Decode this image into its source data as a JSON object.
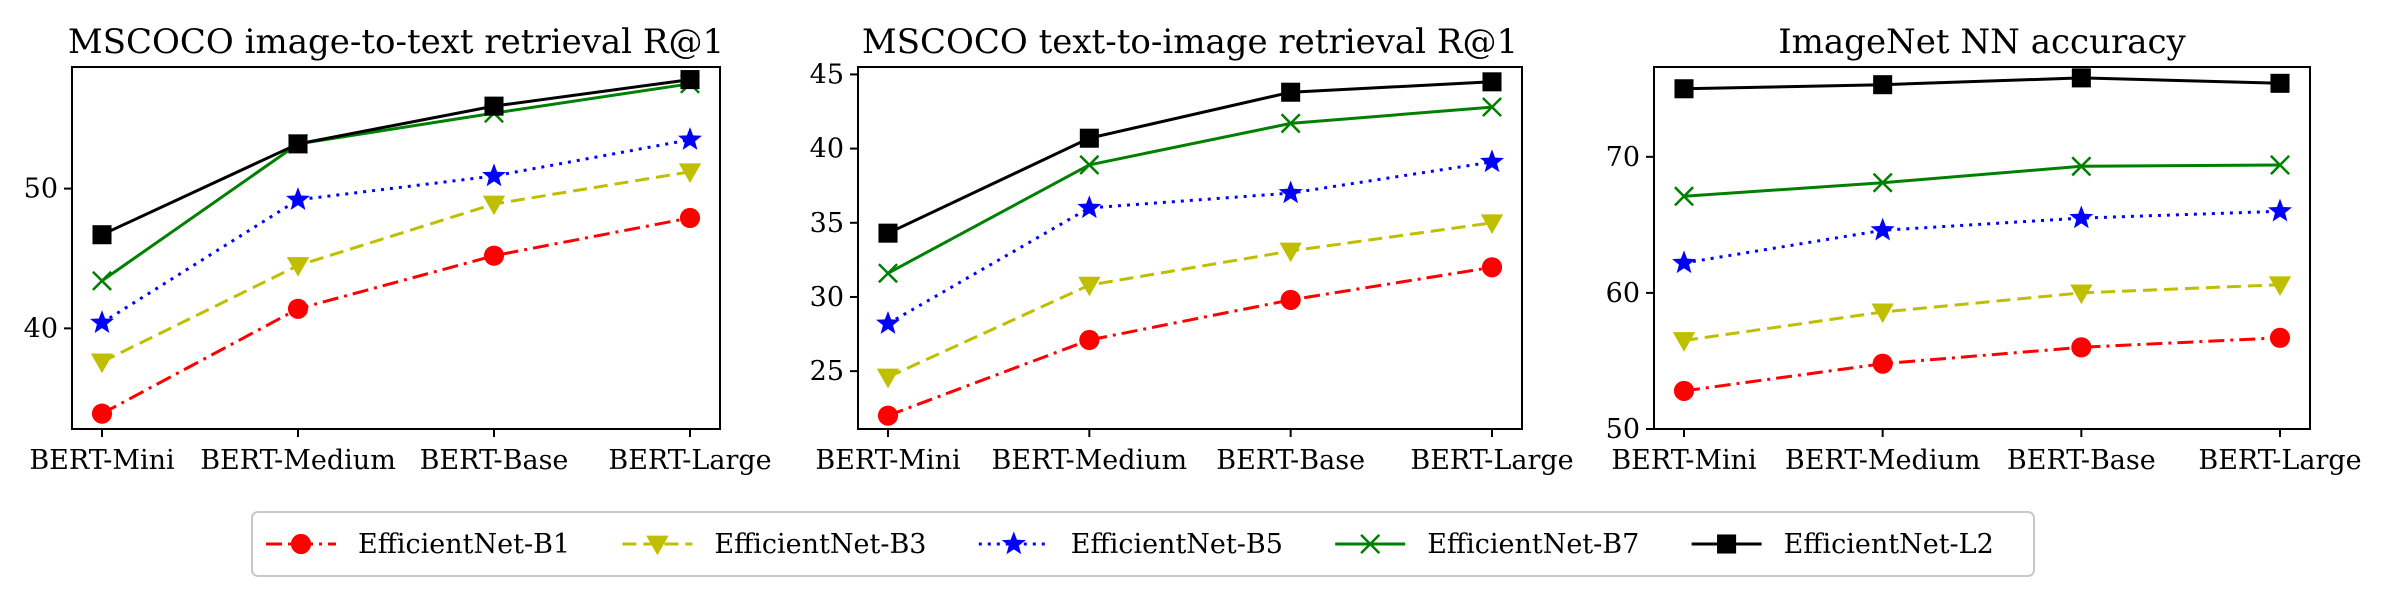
{
  "chart_data": [
    {
      "type": "line",
      "title": "MSCOCO image-to-text retrieval R@1",
      "xlabel": "",
      "ylabel": "",
      "categories": [
        "BERT-Mini",
        "BERT-Medium",
        "BERT-Base",
        "BERT-Large"
      ],
      "yticks": [
        40,
        50
      ],
      "ylim": [
        32.8,
        58.7
      ],
      "grid": false,
      "series": [
        {
          "name": "EfficientNet-B1",
          "values": [
            33.9,
            41.4,
            45.2,
            47.9
          ]
        },
        {
          "name": "EfficientNet-B3",
          "values": [
            37.6,
            44.5,
            48.9,
            51.2
          ]
        },
        {
          "name": "EfficientNet-B5",
          "values": [
            40.4,
            49.2,
            50.9,
            53.5
          ]
        },
        {
          "name": "EfficientNet-B7",
          "values": [
            43.4,
            53.2,
            55.4,
            57.5
          ]
        },
        {
          "name": "EfficientNet-L2",
          "values": [
            46.7,
            53.2,
            55.9,
            57.8
          ]
        }
      ]
    },
    {
      "type": "line",
      "title": "MSCOCO text-to-image retrieval R@1",
      "xlabel": "",
      "ylabel": "",
      "categories": [
        "BERT-Mini",
        "BERT-Medium",
        "BERT-Base",
        "BERT-Large"
      ],
      "yticks": [
        25,
        30,
        35,
        40,
        45
      ],
      "ylim": [
        21.1,
        45.5
      ],
      "grid": false,
      "series": [
        {
          "name": "EfficientNet-B1",
          "values": [
            22.0,
            27.1,
            29.8,
            32.0
          ]
        },
        {
          "name": "EfficientNet-B3",
          "values": [
            24.6,
            30.8,
            33.1,
            35.0
          ]
        },
        {
          "name": "EfficientNet-B5",
          "values": [
            28.2,
            36.0,
            37.0,
            39.1
          ]
        },
        {
          "name": "EfficientNet-B7",
          "values": [
            31.6,
            38.9,
            41.7,
            42.8
          ]
        },
        {
          "name": "EfficientNet-L2",
          "values": [
            34.3,
            40.7,
            43.8,
            44.5
          ]
        }
      ]
    },
    {
      "type": "line",
      "title": "ImageNet NN accuracy",
      "xlabel": "",
      "ylabel": "",
      "categories": [
        "BERT-Mini",
        "BERT-Medium",
        "BERT-Base",
        "BERT-Large"
      ],
      "yticks": [
        50,
        60,
        70
      ],
      "ylim": [
        50,
        76.6
      ],
      "grid": false,
      "series": [
        {
          "name": "EfficientNet-B1",
          "values": [
            52.8,
            54.8,
            56.0,
            56.7
          ]
        },
        {
          "name": "EfficientNet-B3",
          "values": [
            56.5,
            58.6,
            60.0,
            60.6
          ]
        },
        {
          "name": "EfficientNet-B5",
          "values": [
            62.2,
            64.6,
            65.5,
            66.0
          ]
        },
        {
          "name": "EfficientNet-B7",
          "values": [
            67.1,
            68.1,
            69.3,
            69.4
          ]
        },
        {
          "name": "EfficientNet-L2",
          "values": [
            75.0,
            75.3,
            75.8,
            75.4
          ]
        }
      ]
    }
  ],
  "legend": {
    "placement": "bottom-center",
    "entries": [
      {
        "label": "EfficientNet-B1",
        "color": "#ff0000",
        "marker": "circle",
        "line_style": "dash-dot"
      },
      {
        "label": "EfficientNet-B3",
        "color": "#bfbf00",
        "marker": "triangle-down",
        "line_style": "dashed"
      },
      {
        "label": "EfficientNet-B5",
        "color": "#0000ff",
        "marker": "star",
        "line_style": "dotted"
      },
      {
        "label": "EfficientNet-B7",
        "color": "#008000",
        "marker": "x",
        "line_style": "solid"
      },
      {
        "label": "EfficientNet-L2",
        "color": "#000000",
        "marker": "square",
        "line_style": "solid"
      }
    ]
  }
}
